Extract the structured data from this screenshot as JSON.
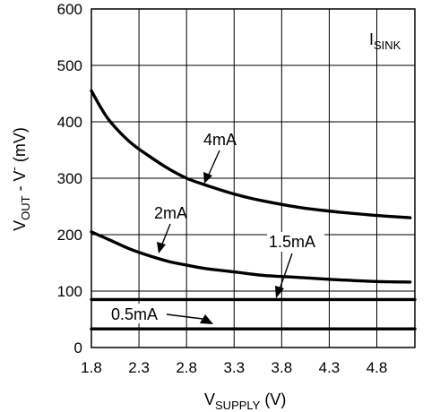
{
  "chart_data": {
    "type": "line",
    "xlabel": {
      "main": "V",
      "sub": "SUPPLY",
      "unit": " (V)"
    },
    "ylabel": {
      "main": "V",
      "sub": "OUT",
      "mid": " - V",
      "sup": "-",
      "unit": " (mV)"
    },
    "xlim": [
      1.8,
      5.2
    ],
    "ylim": [
      0,
      600
    ],
    "x_ticks": [
      1.8,
      2.3,
      2.8,
      3.3,
      3.8,
      4.3,
      4.8
    ],
    "x_tick_labels": [
      "1.8",
      "2.3",
      "2.8",
      "3.3",
      "3.8",
      "4.3",
      "4.8"
    ],
    "y_ticks": [
      0,
      100,
      200,
      300,
      400,
      500,
      600
    ],
    "y_tick_labels": [
      "0",
      "100",
      "200",
      "300",
      "400",
      "500",
      "600"
    ],
    "grid": true,
    "legend_title": {
      "main": "I",
      "sub": "SINK"
    },
    "series": [
      {
        "name": "4mA",
        "x": [
          1.8,
          1.9,
          2.0,
          2.2,
          2.4,
          2.6,
          2.8,
          3.0,
          3.3,
          3.6,
          4.0,
          4.4,
          4.8,
          5.15
        ],
        "y": [
          455,
          425,
          400,
          365,
          340,
          318,
          300,
          288,
          272,
          260,
          248,
          240,
          234,
          230
        ]
      },
      {
        "name": "2mA",
        "x": [
          1.8,
          2.0,
          2.2,
          2.4,
          2.6,
          2.8,
          3.0,
          3.3,
          3.6,
          4.0,
          4.4,
          4.8,
          5.15
        ],
        "y": [
          205,
          190,
          175,
          163,
          153,
          146,
          140,
          134,
          128,
          124,
          120,
          117,
          116
        ]
      },
      {
        "name": "1.5mA",
        "x": [
          1.8,
          5.2
        ],
        "y": [
          85,
          85
        ]
      },
      {
        "name": "0.5mA",
        "x": [
          1.8,
          5.2
        ],
        "y": [
          33,
          33
        ]
      }
    ]
  }
}
